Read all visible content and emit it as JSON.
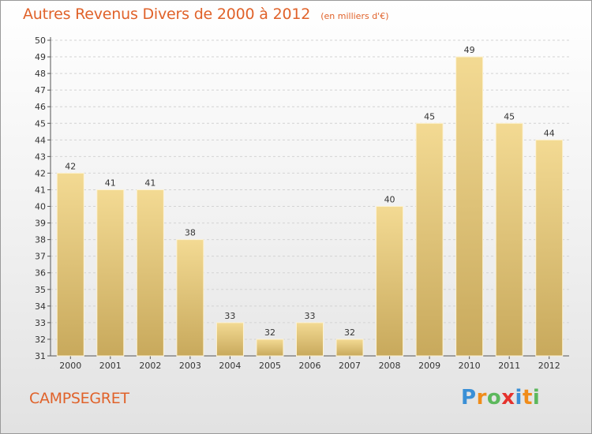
{
  "header": {
    "title": "Autres Revenus Divers de 2000 à 2012",
    "unit": "(en milliers d'€)"
  },
  "footer": {
    "commune": "CAMPSEGRET",
    "brand": "Proxiti",
    "brand_letters": [
      {
        "ch": "P",
        "color": "#3a8fd6"
      },
      {
        "ch": "r",
        "color": "#f08c1a"
      },
      {
        "ch": "o",
        "color": "#5cb85c"
      },
      {
        "ch": "x",
        "color": "#e5322d"
      },
      {
        "ch": "i",
        "color": "#3a8fd6"
      },
      {
        "ch": "t",
        "color": "#f08c1a"
      },
      {
        "ch": "i",
        "color": "#5cb85c"
      }
    ]
  },
  "colors": {
    "accent": "#e0622a",
    "bar_top": "#f3da93",
    "bar_bottom": "#c8a95c",
    "bar_edge": "#fdf3d3",
    "grid": "#d3d3d3",
    "axis": "#555555",
    "label": "#333333"
  },
  "chart_data": {
    "type": "bar",
    "title": "Autres Revenus Divers de 2000 à 2012",
    "categories": [
      "2000",
      "2001",
      "2002",
      "2003",
      "2004",
      "2005",
      "2006",
      "2007",
      "2008",
      "2009",
      "2010",
      "2011",
      "2012"
    ],
    "values": [
      42,
      41,
      41,
      38,
      33,
      32,
      33,
      32,
      40,
      45,
      49,
      45,
      44
    ],
    "ylim": [
      31,
      50
    ],
    "ytick_step": 1,
    "grid": true,
    "data_labels": true
  }
}
